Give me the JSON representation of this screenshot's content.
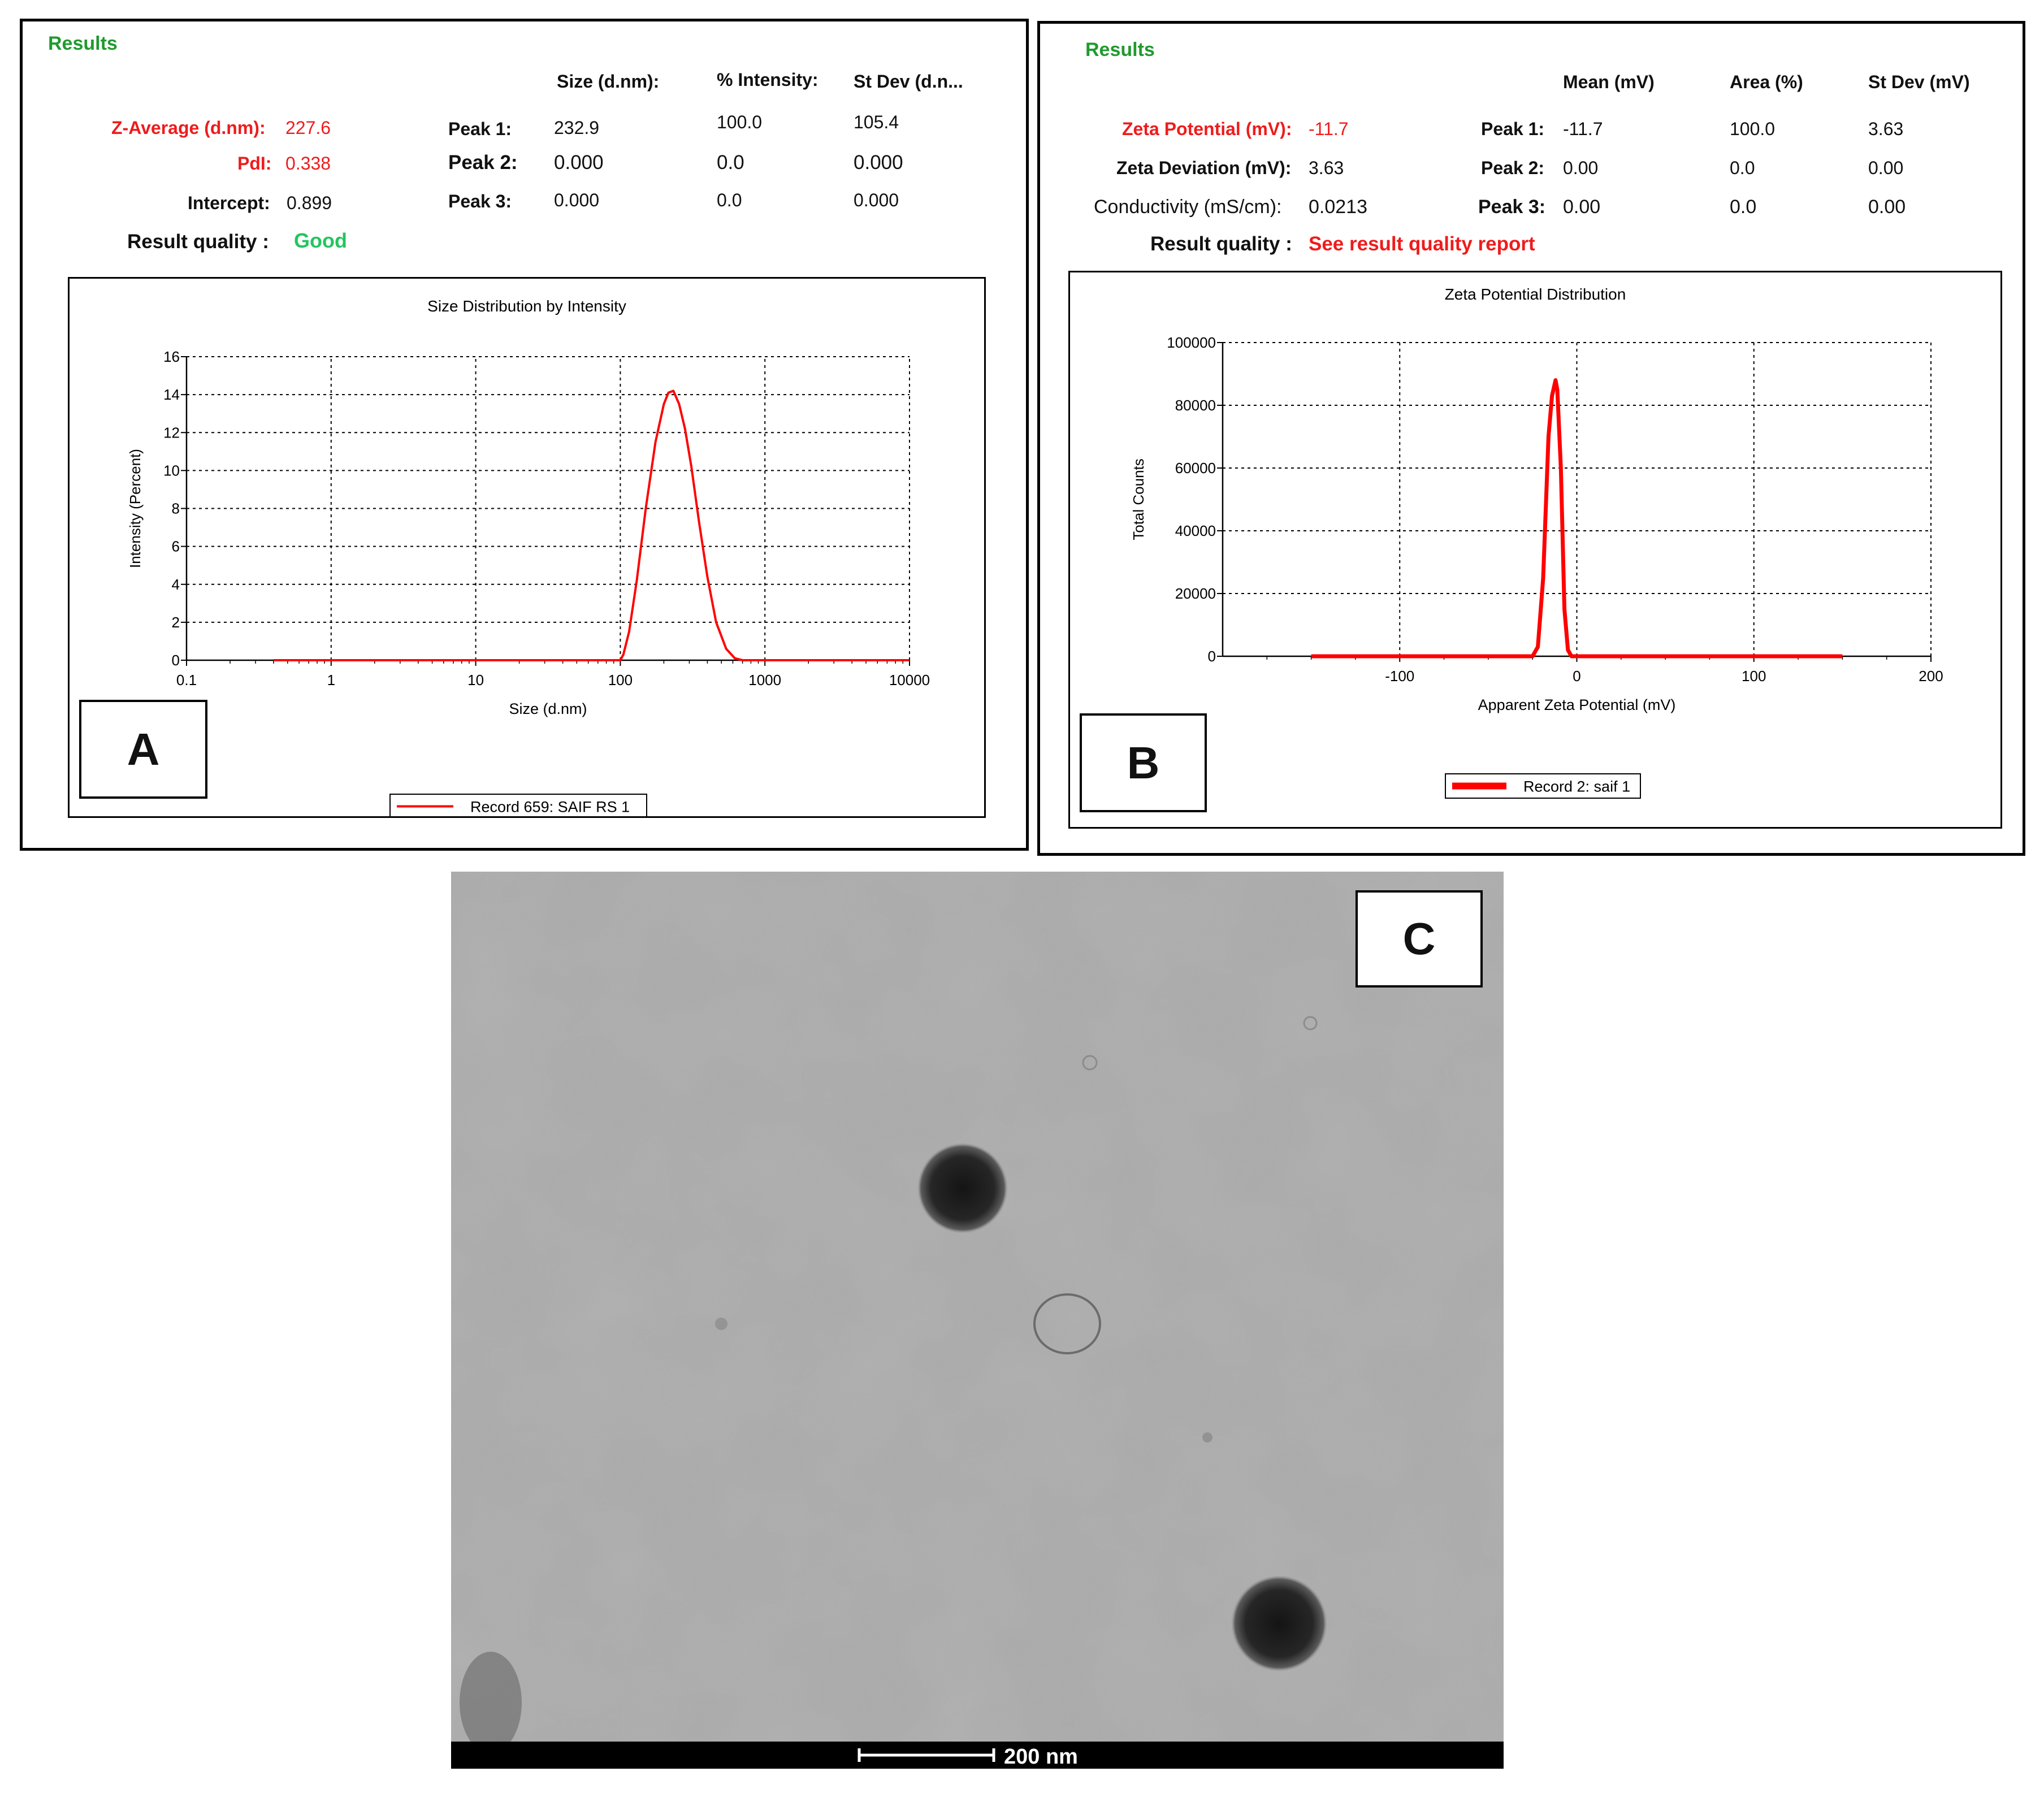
{
  "panel_a": {
    "letter": "A",
    "results_title": "Results",
    "col_headers": [
      "Size (d.nm):",
      "% Intensity:",
      "St Dev (d.n..."
    ],
    "z_average_label": "Z-Average (d.nm):",
    "z_average_value": "227.6",
    "pdi_label": "PdI:",
    "pdi_value": "0.338",
    "intercept_label": "Intercept:",
    "intercept_value": "0.899",
    "quality_label": "Result quality :",
    "quality_value": "Good",
    "peaks": [
      {
        "label": "Peak 1:",
        "size": "232.9",
        "intensity": "100.0",
        "stdev": "105.4"
      },
      {
        "label": "Peak 2:",
        "size": "0.000",
        "intensity": "0.0",
        "stdev": "0.000"
      },
      {
        "label": "Peak 3:",
        "size": "0.000",
        "intensity": "0.0",
        "stdev": "0.000"
      }
    ]
  },
  "panel_b": {
    "letter": "B",
    "results_title": "Results",
    "col_headers": [
      "Mean (mV)",
      "Area (%)",
      "St Dev (mV)"
    ],
    "zeta_label": "Zeta Potential (mV):",
    "zeta_value": "-11.7",
    "deviation_label": "Zeta Deviation (mV):",
    "deviation_value": "3.63",
    "conductivity_label": "Conductivity (mS/cm):",
    "conductivity_value": "0.0213",
    "quality_label": "Result quality :",
    "quality_value": "See result quality report",
    "peaks": [
      {
        "label": "Peak 1:",
        "mean": "-11.7",
        "area": "100.0",
        "stdev": "3.63"
      },
      {
        "label": "Peak 2:",
        "mean": "0.00",
        "area": "0.0",
        "stdev": "0.00"
      },
      {
        "label": "Peak 3:",
        "mean": "0.00",
        "area": "0.0",
        "stdev": "0.00"
      }
    ]
  },
  "panel_c": {
    "letter": "C",
    "scale_bar_label": "200 nm",
    "scale_bar_nm": 200
  },
  "colors": {
    "results_green": "#1f9a2e",
    "good_green": "#22c55e",
    "warn_red": "#ee1c1c",
    "series_red": "#ff0000"
  },
  "chart_data": [
    {
      "type": "line",
      "title": "Size Distribution by Intensity",
      "xlabel": "Size (d.nm)",
      "ylabel": "Intensity (Percent)",
      "x_scale": "log",
      "xlim": [
        0.1,
        10000
      ],
      "ylim": [
        0,
        16
      ],
      "x_ticks": [
        "0.1",
        "1",
        "10",
        "100",
        "1000",
        "10000"
      ],
      "y_ticks": [
        "0",
        "2",
        "4",
        "6",
        "8",
        "10",
        "12",
        "14",
        "16"
      ],
      "grid": true,
      "series": [
        {
          "name": "Record 659: SAIF RS 1",
          "color": "#ff0000",
          "x": [
            0.4,
            100,
            105,
            115,
            130,
            150,
            175,
            200,
            215,
            232.9,
            255,
            280,
            310,
            350,
            400,
            460,
            540,
            620,
            700,
            800,
            10000
          ],
          "y": [
            0,
            0,
            0.3,
            1.5,
            4.2,
            8.0,
            11.5,
            13.5,
            14.1,
            14.2,
            13.5,
            12.2,
            10.2,
            7.3,
            4.4,
            2.0,
            0.6,
            0.1,
            0,
            0,
            0
          ]
        }
      ],
      "legend": "bottom-center"
    },
    {
      "type": "line",
      "title": "Zeta Potential Distribution",
      "xlabel": "Apparent Zeta Potential (mV)",
      "ylabel": "Total Counts",
      "xlim": [
        -200,
        200
      ],
      "ylim": [
        0,
        100000
      ],
      "x_ticks": [
        "-100",
        "0",
        "100",
        "200"
      ],
      "y_ticks": [
        "0",
        "20000",
        "40000",
        "60000",
        "80000",
        "100000"
      ],
      "grid": true,
      "series": [
        {
          "name": "Record 2: saif 1",
          "color": "#ff0000",
          "x": [
            -150,
            -25,
            -22,
            -19,
            -16,
            -14,
            -12,
            -11,
            -9,
            -7,
            -5,
            -3,
            150
          ],
          "y": [
            0,
            0,
            3000,
            25000,
            70000,
            83000,
            88000,
            85000,
            60000,
            15000,
            2000,
            0,
            0
          ]
        }
      ],
      "legend": "bottom-center"
    }
  ]
}
